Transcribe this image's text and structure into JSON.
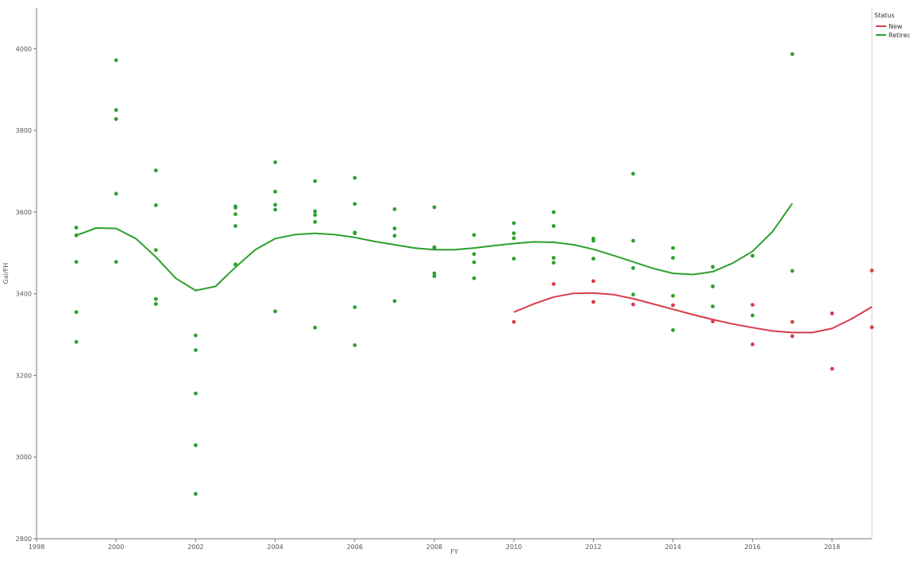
{
  "chart_data": {
    "type": "scatter",
    "title": "",
    "xlabel": "FY",
    "ylabel": "Gal/FH",
    "xlim": [
      1998,
      2019
    ],
    "ylim": [
      2800,
      4100
    ],
    "x_ticks": [
      1998,
      2000,
      2002,
      2004,
      2006,
      2008,
      2010,
      2012,
      2014,
      2016,
      2018
    ],
    "y_ticks": [
      2800,
      3000,
      3200,
      3400,
      3600,
      3800,
      4000
    ],
    "grid": false,
    "legend": {
      "title": "Status",
      "placement": "top-right",
      "entries": [
        {
          "label": "New",
          "color": "#d93a4a"
        },
        {
          "label": "Retired",
          "color": "#2ca02c"
        }
      ]
    },
    "series": [
      {
        "name": "Retired",
        "color": "#2ca02c",
        "points": [
          [
            1999,
            3562
          ],
          [
            1999,
            3543
          ],
          [
            1999,
            3478
          ],
          [
            1999,
            3355
          ],
          [
            1999,
            3282
          ],
          [
            2000,
            3972
          ],
          [
            2000,
            3850
          ],
          [
            2000,
            3828
          ],
          [
            2000,
            3645
          ],
          [
            2000,
            3478
          ],
          [
            2001,
            3702
          ],
          [
            2001,
            3617
          ],
          [
            2001,
            3507
          ],
          [
            2001,
            3387
          ],
          [
            2001,
            3375
          ],
          [
            2002,
            3298
          ],
          [
            2002,
            3262
          ],
          [
            2002,
            3156
          ],
          [
            2002,
            3029
          ],
          [
            2002,
            2910
          ],
          [
            2003,
            3614
          ],
          [
            2003,
            3611
          ],
          [
            2003,
            3595
          ],
          [
            2003,
            3566
          ],
          [
            2003,
            3472
          ],
          [
            2004,
            3722
          ],
          [
            2004,
            3650
          ],
          [
            2004,
            3618
          ],
          [
            2004,
            3606
          ],
          [
            2004,
            3357
          ],
          [
            2005,
            3676
          ],
          [
            2005,
            3602
          ],
          [
            2005,
            3593
          ],
          [
            2005,
            3576
          ],
          [
            2005,
            3317
          ],
          [
            2006,
            3684
          ],
          [
            2006,
            3620
          ],
          [
            2006,
            3550
          ],
          [
            2006,
            3548
          ],
          [
            2006,
            3367
          ],
          [
            2006,
            3274
          ],
          [
            2007,
            3607
          ],
          [
            2007,
            3560
          ],
          [
            2007,
            3542
          ],
          [
            2007,
            3382
          ],
          [
            2008,
            3612
          ],
          [
            2008,
            3514
          ],
          [
            2008,
            3512
          ],
          [
            2008,
            3450
          ],
          [
            2008,
            3443
          ],
          [
            2009,
            3544
          ],
          [
            2009,
            3497
          ],
          [
            2009,
            3477
          ],
          [
            2009,
            3438
          ],
          [
            2010,
            3573
          ],
          [
            2010,
            3548
          ],
          [
            2010,
            3536
          ],
          [
            2010,
            3486
          ],
          [
            2011,
            3600
          ],
          [
            2011,
            3566
          ],
          [
            2011,
            3488
          ],
          [
            2011,
            3476
          ],
          [
            2012,
            3535
          ],
          [
            2012,
            3530
          ],
          [
            2012,
            3486
          ],
          [
            2013,
            3694
          ],
          [
            2013,
            3530
          ],
          [
            2013,
            3463
          ],
          [
            2013,
            3398
          ],
          [
            2014,
            3512
          ],
          [
            2014,
            3488
          ],
          [
            2014,
            3395
          ],
          [
            2014,
            3311
          ],
          [
            2015,
            3466
          ],
          [
            2015,
            3418
          ],
          [
            2015,
            3369
          ],
          [
            2016,
            3493
          ],
          [
            2016,
            3347
          ],
          [
            2017,
            3987
          ],
          [
            2017,
            3456
          ]
        ],
        "fit": [
          [
            1999,
            3543
          ],
          [
            1999.5,
            3561
          ],
          [
            2000,
            3560
          ],
          [
            2000.5,
            3535
          ],
          [
            2001,
            3490
          ],
          [
            2001.5,
            3438
          ],
          [
            2002,
            3408
          ],
          [
            2002.5,
            3418
          ],
          [
            2003,
            3465
          ],
          [
            2003.5,
            3508
          ],
          [
            2004,
            3535
          ],
          [
            2004.5,
            3545
          ],
          [
            2005,
            3548
          ],
          [
            2005.5,
            3545
          ],
          [
            2006,
            3538
          ],
          [
            2006.5,
            3528
          ],
          [
            2007,
            3520
          ],
          [
            2007.5,
            3512
          ],
          [
            2008,
            3508
          ],
          [
            2008.5,
            3508
          ],
          [
            2009,
            3512
          ],
          [
            2009.5,
            3518
          ],
          [
            2010,
            3523
          ],
          [
            2010.5,
            3527
          ],
          [
            2011,
            3526
          ],
          [
            2011.5,
            3520
          ],
          [
            2012,
            3509
          ],
          [
            2012.5,
            3494
          ],
          [
            2013,
            3478
          ],
          [
            2013.5,
            3462
          ],
          [
            2014,
            3450
          ],
          [
            2014.5,
            3447
          ],
          [
            2015,
            3454
          ],
          [
            2015.5,
            3475
          ],
          [
            2016,
            3504
          ],
          [
            2016.5,
            3552
          ],
          [
            2017,
            3621
          ]
        ]
      },
      {
        "name": "New",
        "color": "#d93a4a",
        "points": [
          [
            2010,
            3331
          ],
          [
            2011,
            3424
          ],
          [
            2012,
            3431
          ],
          [
            2012,
            3380
          ],
          [
            2013,
            3374
          ],
          [
            2014,
            3372
          ],
          [
            2015,
            3332
          ],
          [
            2016,
            3373
          ],
          [
            2016,
            3276
          ],
          [
            2017,
            3331
          ],
          [
            2017,
            3296
          ],
          [
            2018,
            3352
          ],
          [
            2018,
            3216
          ],
          [
            2019,
            3457
          ],
          [
            2019,
            3318
          ]
        ],
        "fit": [
          [
            2010,
            3355
          ],
          [
            2010.5,
            3375
          ],
          [
            2011,
            3392
          ],
          [
            2011.5,
            3401
          ],
          [
            2012,
            3402
          ],
          [
            2012.5,
            3398
          ],
          [
            2013,
            3388
          ],
          [
            2013.5,
            3375
          ],
          [
            2014,
            3362
          ],
          [
            2014.5,
            3349
          ],
          [
            2015,
            3337
          ],
          [
            2015.5,
            3326
          ],
          [
            2016,
            3317
          ],
          [
            2016.5,
            3309
          ],
          [
            2017,
            3305
          ],
          [
            2017.5,
            3305
          ],
          [
            2018,
            3315
          ],
          [
            2018.5,
            3339
          ],
          [
            2019,
            3368
          ]
        ]
      }
    ]
  }
}
